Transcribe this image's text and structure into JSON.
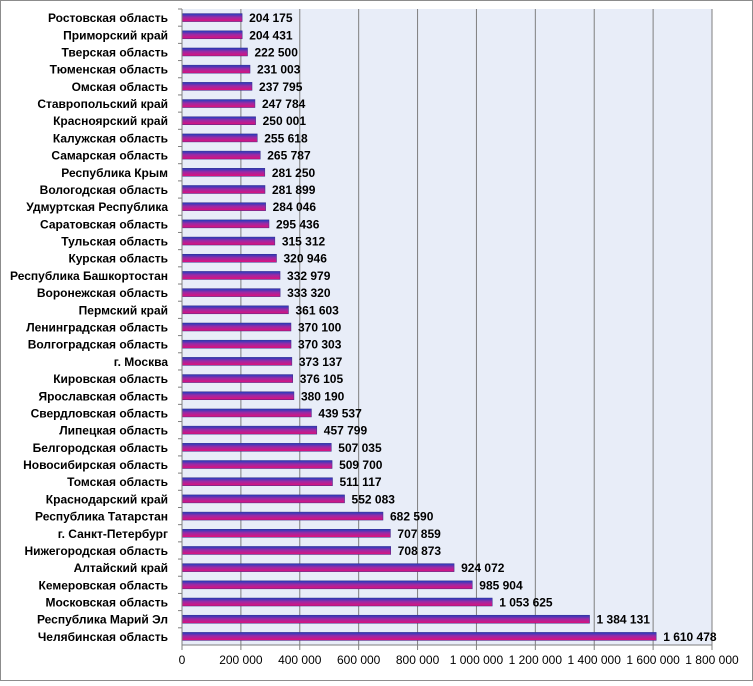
{
  "chart_data": {
    "type": "bar",
    "orientation": "horizontal",
    "title": "",
    "xlabel": "",
    "ylabel": "",
    "xlim": [
      0,
      1800000
    ],
    "grid": true,
    "legend": "none",
    "colors": {
      "bar_top": "#1f3fbf",
      "bar_bottom": "#e0107a",
      "plot_bg": "#e8edf8",
      "grid": "#7f7f7f"
    },
    "x_ticks": [
      0,
      200000,
      400000,
      600000,
      800000,
      1000000,
      1200000,
      1400000,
      1600000,
      1800000
    ],
    "x_tick_labels": [
      "0",
      "200 000",
      "400 000",
      "600 000",
      "800 000",
      "1 000 000",
      "1 200 000",
      "1 400 000",
      "1 600 000",
      "1 800 000"
    ],
    "categories": [
      "Ростовская область",
      "Приморский край",
      "Тверская область",
      "Тюменская область",
      "Омская область",
      "Ставропольский край",
      "Красноярский край",
      "Калужская область",
      "Самарская область",
      "Республика  Крым",
      "Вологодская область",
      "Удмуртская Республика",
      "Саратовская область",
      "Тульская область",
      "Курская область",
      "Республика  Башкортостан",
      "Воронежская область",
      "Пермский край",
      "Ленинградская область",
      "Волгоградская область",
      "г. Москва",
      "Кировская область",
      "Ярославская область",
      "Свердловская область",
      "Липецкая область",
      "Белгородская область",
      "Новосибирская область",
      "Томская область",
      "Краснодарский край",
      "Республика  Татарстан",
      "г. Санкт-Петербург",
      "Нижегородская область",
      "Алтайский край",
      "Кемеровская область",
      "Московская область",
      "Республика  Марий Эл",
      "Челябинская область"
    ],
    "values": [
      204175,
      204431,
      222500,
      231003,
      237795,
      247784,
      250001,
      255618,
      265787,
      281250,
      281899,
      284046,
      295436,
      315312,
      320946,
      332979,
      333320,
      361603,
      370100,
      370303,
      373137,
      376105,
      380190,
      439537,
      457799,
      507035,
      509700,
      511117,
      552083,
      682590,
      707859,
      708873,
      924072,
      985904,
      1053625,
      1384131,
      1610478
    ],
    "value_labels": [
      "204 175",
      "204 431",
      "222 500",
      "231 003",
      "237 795",
      "247 784",
      "250 001",
      "255 618",
      "265 787",
      "281 250",
      "281 899",
      "284 046",
      "295 436",
      "315 312",
      "320 946",
      "332 979",
      "333 320",
      "361 603",
      "370 100",
      "370 303",
      "373 137",
      "376 105",
      "380 190",
      "439 537",
      "457 799",
      "507 035",
      "509 700",
      "511 117",
      "552 083",
      "682 590",
      "707 859",
      "708 873",
      "924 072",
      "985 904",
      "1 053 625",
      "1 384 131",
      "1 610 478"
    ]
  }
}
